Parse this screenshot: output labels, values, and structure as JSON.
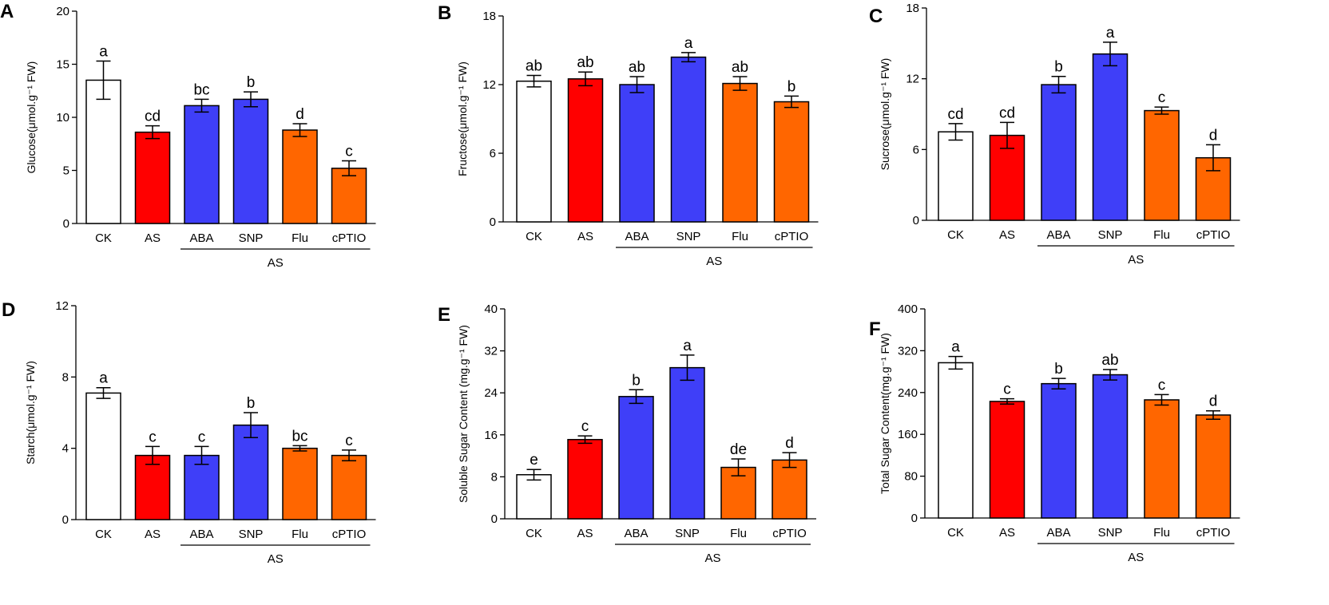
{
  "figure": {
    "categories": [
      "CK",
      "AS",
      "ABA",
      "SNP",
      "Flu",
      "cPTIO"
    ],
    "group_label": "AS",
    "colors": [
      "#ffffff",
      "#ff0000",
      "#3f3ff8",
      "#3f3ff8",
      "#ff6600",
      "#ff6600"
    ],
    "bar_edge_color": "#000000"
  },
  "chart_data": [
    {
      "type": "bar",
      "panel": "A",
      "ylabel": "Glucose(μmol.g⁻¹ FW)",
      "ylim": [
        0,
        20
      ],
      "yticks": [
        0,
        5,
        10,
        15,
        20
      ],
      "categories": [
        "CK",
        "AS",
        "ABA",
        "SNP",
        "Flu",
        "cPTIO"
      ],
      "values": [
        13.5,
        8.6,
        11.1,
        11.7,
        8.8,
        5.2
      ],
      "errors": [
        1.8,
        0.6,
        0.6,
        0.7,
        0.6,
        0.7
      ],
      "significance": [
        "a",
        "cd",
        "bc",
        "b",
        "d",
        "c"
      ]
    },
    {
      "type": "bar",
      "panel": "B",
      "ylabel": "Fructose(μmol.g⁻¹ FW)",
      "ylim": [
        0,
        18
      ],
      "yticks": [
        0,
        6,
        12,
        18
      ],
      "categories": [
        "CK",
        "AS",
        "ABA",
        "SNP",
        "Flu",
        "cPTIO"
      ],
      "values": [
        12.3,
        12.5,
        12.0,
        14.4,
        12.1,
        10.5
      ],
      "errors": [
        0.5,
        0.6,
        0.7,
        0.4,
        0.6,
        0.5
      ],
      "significance": [
        "ab",
        "ab",
        "ab",
        "a",
        "ab",
        "b"
      ]
    },
    {
      "type": "bar",
      "panel": "C",
      "ylabel": "Sucrose(μmol.g⁻¹ FW)",
      "ylim": [
        0,
        18
      ],
      "yticks": [
        0,
        6,
        12,
        18
      ],
      "categories": [
        "CK",
        "AS",
        "ABA",
        "SNP",
        "Flu",
        "cPTIO"
      ],
      "values": [
        7.5,
        7.2,
        11.5,
        14.1,
        9.3,
        5.3
      ],
      "errors": [
        0.7,
        1.1,
        0.7,
        1.0,
        0.3,
        1.1
      ],
      "significance": [
        "cd",
        "cd",
        "b",
        "a",
        "c",
        "d"
      ]
    },
    {
      "type": "bar",
      "panel": "D",
      "ylabel": "Starch(μmol.g⁻¹ FW)",
      "ylim": [
        0,
        12
      ],
      "yticks": [
        0,
        4,
        8,
        12
      ],
      "categories": [
        "CK",
        "AS",
        "ABA",
        "SNP",
        "Flu",
        "cPTIO"
      ],
      "values": [
        7.1,
        3.6,
        3.6,
        5.3,
        4.0,
        3.6
      ],
      "errors": [
        0.3,
        0.5,
        0.5,
        0.7,
        0.15,
        0.3
      ],
      "significance": [
        "a",
        "c",
        "c",
        "b",
        "bc",
        "c"
      ]
    },
    {
      "type": "bar",
      "panel": "E",
      "ylabel": "Soluble Sugar Content (mg.g⁻¹ FW)",
      "ylim": [
        0,
        40
      ],
      "yticks": [
        0,
        8,
        16,
        24,
        32,
        40
      ],
      "categories": [
        "CK",
        "AS",
        "ABA",
        "SNP",
        "Flu",
        "cPTIO"
      ],
      "values": [
        8.4,
        15.1,
        23.3,
        28.8,
        9.8,
        11.2
      ],
      "errors": [
        1.0,
        0.7,
        1.3,
        2.4,
        1.6,
        1.4
      ],
      "significance": [
        "e",
        "c",
        "b",
        "a",
        "de",
        "d"
      ]
    },
    {
      "type": "bar",
      "panel": "F",
      "ylabel": "Total Sugar Content(mg.g⁻¹ FW)",
      "ylim": [
        0,
        400
      ],
      "yticks": [
        0,
        80,
        160,
        240,
        320,
        400
      ],
      "categories": [
        "CK",
        "AS",
        "ABA",
        "SNP",
        "Flu",
        "cPTIO"
      ],
      "values": [
        297,
        223,
        257,
        274,
        226,
        197
      ],
      "errors": [
        12,
        5,
        10,
        10,
        10,
        8
      ],
      "significance": [
        "a",
        "c",
        "b",
        "ab",
        "c",
        "d"
      ]
    }
  ]
}
